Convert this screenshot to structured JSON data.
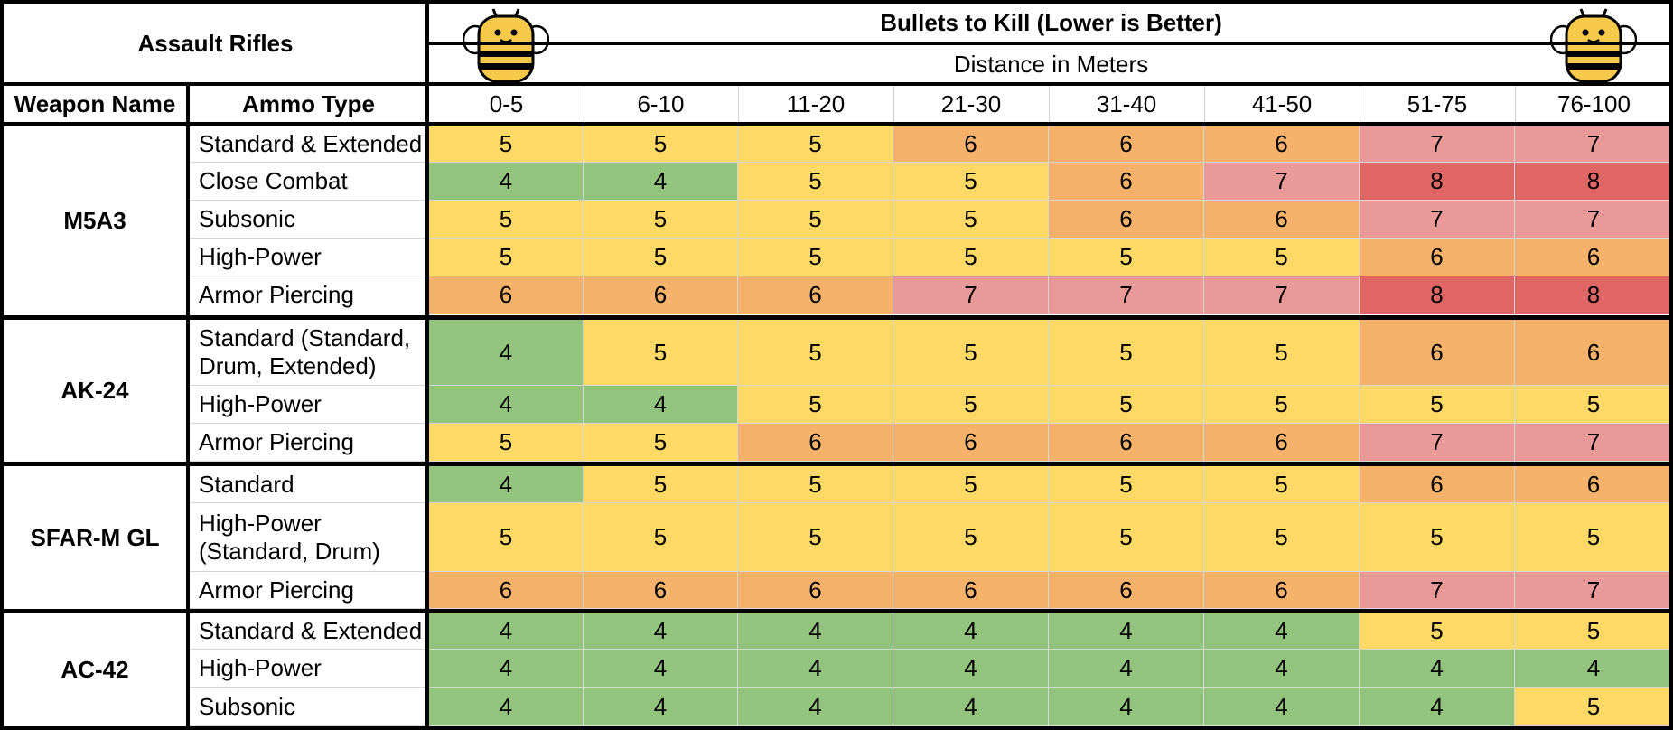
{
  "table": {
    "category_title": "Assault Rifles",
    "main_title": "Bullets to Kill (Lower is Better)",
    "subtitle": "Distance in Meters",
    "col_weapon": "Weapon Name",
    "col_ammo": "Ammo Type",
    "distances": [
      "0-5",
      "6-10",
      "11-20",
      "21-30",
      "31-40",
      "41-50",
      "51-75",
      "76-100"
    ],
    "weapons": [
      {
        "name": "M5A3",
        "rows": [
          {
            "ammo": [
              "Standard & Extended"
            ],
            "values": [
              5,
              5,
              5,
              6,
              6,
              6,
              7,
              7
            ]
          },
          {
            "ammo": [
              "Close Combat"
            ],
            "values": [
              4,
              4,
              5,
              5,
              6,
              7,
              8,
              8
            ]
          },
          {
            "ammo": [
              "Subsonic"
            ],
            "values": [
              5,
              5,
              5,
              5,
              6,
              6,
              7,
              7
            ]
          },
          {
            "ammo": [
              "High-Power"
            ],
            "values": [
              5,
              5,
              5,
              5,
              5,
              5,
              6,
              6
            ]
          },
          {
            "ammo": [
              "Armor Piercing"
            ],
            "values": [
              6,
              6,
              6,
              7,
              7,
              7,
              8,
              8
            ]
          }
        ]
      },
      {
        "name": "AK-24",
        "rows": [
          {
            "ammo": [
              "Standard (Standard,",
              "Drum, Extended)"
            ],
            "values": [
              4,
              5,
              5,
              5,
              5,
              5,
              6,
              6
            ]
          },
          {
            "ammo": [
              "High-Power"
            ],
            "values": [
              4,
              4,
              5,
              5,
              5,
              5,
              5,
              5
            ]
          },
          {
            "ammo": [
              "Armor Piercing"
            ],
            "values": [
              5,
              5,
              6,
              6,
              6,
              6,
              7,
              7
            ]
          }
        ]
      },
      {
        "name": "SFAR-M GL",
        "rows": [
          {
            "ammo": [
              "Standard"
            ],
            "values": [
              4,
              5,
              5,
              5,
              5,
              5,
              6,
              6
            ]
          },
          {
            "ammo": [
              "High-Power",
              "(Standard, Drum)"
            ],
            "values": [
              5,
              5,
              5,
              5,
              5,
              5,
              5,
              5
            ]
          },
          {
            "ammo": [
              "Armor Piercing"
            ],
            "values": [
              6,
              6,
              6,
              6,
              6,
              6,
              7,
              7
            ]
          }
        ]
      },
      {
        "name": "AC-42",
        "rows": [
          {
            "ammo": [
              "Standard & Extended"
            ],
            "values": [
              4,
              4,
              4,
              4,
              4,
              4,
              5,
              5
            ]
          },
          {
            "ammo": [
              "High-Power"
            ],
            "values": [
              4,
              4,
              4,
              4,
              4,
              4,
              4,
              4
            ]
          },
          {
            "ammo": [
              "Subsonic"
            ],
            "values": [
              4,
              4,
              4,
              4,
              4,
              4,
              4,
              5
            ]
          }
        ]
      }
    ],
    "value_colors": {
      "4": "#93c47d",
      "5": "#ffd966",
      "6": "#f6b26b",
      "7": "#ea9999",
      "8": "#e06666"
    },
    "bee_icon": "bee-icon"
  }
}
